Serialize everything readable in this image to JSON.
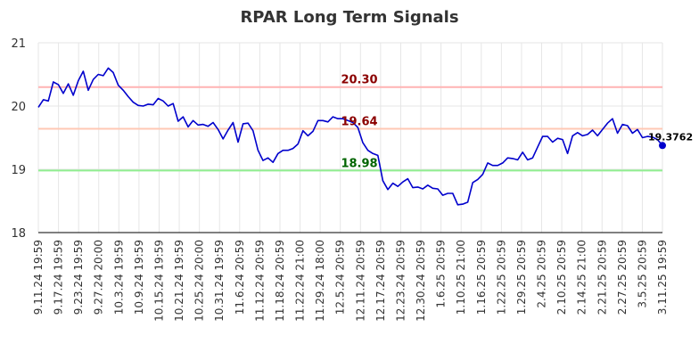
{
  "chart_data": {
    "type": "line",
    "title": "RPAR Long Term Signals",
    "ylim": [
      18,
      21
    ],
    "y_ticks": [
      "18",
      "19",
      "20",
      "21"
    ],
    "x_tick_labels": [
      "9.11.24 19:59",
      "9.17.24 19:59",
      "9.23.24 19:59",
      "9.27.24 20:00",
      "10.3.24 19:59",
      "10.9.24 19:59",
      "10.15.24 19:59",
      "10.21.24 19:59",
      "10.25.24 20:00",
      "10.31.24 19:59",
      "11.6.24 20:59",
      "11.12.24 20:59",
      "11.18.24 20:59",
      "11.22.24 21:00",
      "11.29.24 18:00",
      "12.5.24 20:59",
      "12.11.24 20:59",
      "12.17.24 20:59",
      "12.23.24 20:59",
      "12.30.24 20:59",
      "1.6.25 20:59",
      "1.10.25 21:00",
      "1.16.25 20:59",
      "1.22.25 20:59",
      "1.29.25 20:59",
      "2.4.25 20:59",
      "2.10.25 20:59",
      "2.14.25 21:00",
      "2.21.25 20:59",
      "2.27.25 20:59",
      "3.5.25 20:59",
      "3.11.25 19:59"
    ],
    "grid": true,
    "colors": {
      "line": "#0000cc",
      "upper_band": "#ffb3b3",
      "middle_band": "#ffc8b4",
      "lower_band": "#90ee90",
      "upper_label": "#8b0000",
      "middle_label": "#8b0000",
      "lower_label": "#006400"
    },
    "horizontal_lines": [
      {
        "value": 20.3,
        "label": "20.30",
        "kind": "upper"
      },
      {
        "value": 19.64,
        "label": "19.64",
        "kind": "middle"
      },
      {
        "value": 18.98,
        "label": "18.98",
        "kind": "lower"
      }
    ],
    "last_value_label": "19.3762",
    "values": [
      19.98,
      20.1,
      20.08,
      20.38,
      20.34,
      20.2,
      20.35,
      20.17,
      20.4,
      20.55,
      20.25,
      20.42,
      20.5,
      20.48,
      20.6,
      20.53,
      20.33,
      20.25,
      20.15,
      20.06,
      20.01,
      20.0,
      20.03,
      20.02,
      20.12,
      20.08,
      20.0,
      20.04,
      19.76,
      19.83,
      19.67,
      19.77,
      19.7,
      19.71,
      19.68,
      19.74,
      19.63,
      19.48,
      19.62,
      19.74,
      19.43,
      19.72,
      19.73,
      19.61,
      19.3,
      19.14,
      19.18,
      19.11,
      19.25,
      19.3,
      19.3,
      19.33,
      19.4,
      19.61,
      19.53,
      19.6,
      19.77,
      19.77,
      19.75,
      19.83,
      19.8,
      19.8,
      19.77,
      19.74,
      19.66,
      19.42,
      19.3,
      19.25,
      19.22,
      18.82,
      18.68,
      18.78,
      18.73,
      18.8,
      18.85,
      18.71,
      18.72,
      18.69,
      18.75,
      18.7,
      18.69,
      18.59,
      18.62,
      18.62,
      18.44,
      18.45,
      18.48,
      18.79,
      18.84,
      18.92,
      19.1,
      19.06,
      19.06,
      19.1,
      19.18,
      19.17,
      19.15,
      19.27,
      19.15,
      19.18,
      19.35,
      19.52,
      19.52,
      19.43,
      19.49,
      19.47,
      19.25,
      19.53,
      19.58,
      19.53,
      19.55,
      19.62,
      19.53,
      19.63,
      19.73,
      19.8,
      19.57,
      19.71,
      19.69,
      19.57,
      19.63,
      19.5,
      19.52,
      19.51,
      19.47,
      19.3762
    ]
  }
}
